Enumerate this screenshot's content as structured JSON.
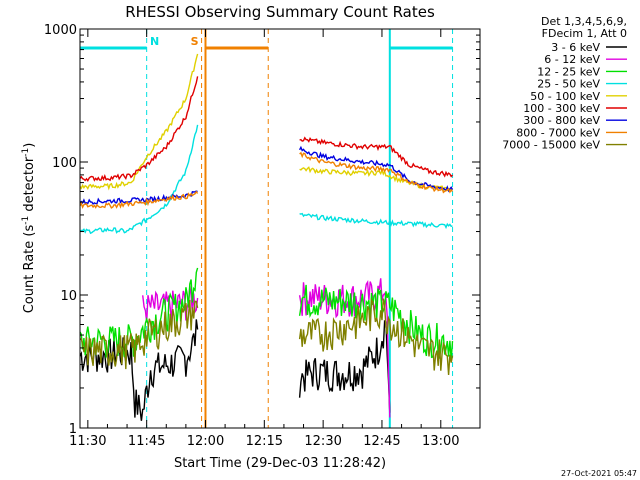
{
  "chart_data": {
    "type": "line",
    "title": "RHESSI Observing Summary Count Rates",
    "xlabel": "Start Time (29-Dec-03 11:28:42)",
    "ylabel_main": "Count Rate (s",
    "ylabel_sup1": "-1",
    "ylabel_mid": " detector",
    "ylabel_sup2": "-1",
    "ylabel_end": ")",
    "y_scale": "log",
    "ylim": [
      1,
      1000
    ],
    "xlim": [
      "11:28",
      "13:10"
    ],
    "x_tick_labels": [
      "11:30",
      "11:45",
      "12:00",
      "12:15",
      "12:30",
      "12:45",
      "13:00"
    ],
    "y_tick_labels": [
      "1",
      "10",
      "100",
      "1000"
    ],
    "legend_header": [
      "Det 1,3,4,5,6,9,",
      "FDecim 1, Att 0"
    ],
    "legend_position": "right",
    "series": [
      {
        "name": "3 - 6 keV",
        "color": "#000000",
        "points": [
          [
            "11:28",
            3.5
          ],
          [
            "11:36",
            3.6
          ],
          [
            "11:41",
            3.8
          ],
          [
            "11:42",
            1.6
          ],
          [
            "11:44",
            1.3
          ],
          [
            "11:46",
            2.8
          ],
          [
            "11:50",
            3.0
          ],
          [
            "11:55",
            3.4
          ],
          [
            "11:57",
            4.5
          ],
          [
            "11:58",
            5.5
          ],
          [
            "12:24",
            2.4
          ],
          [
            "12:28",
            2.7
          ],
          [
            "12:35",
            2.6
          ],
          [
            "12:40",
            2.8
          ],
          [
            "12:44",
            4.0
          ],
          [
            "12:46",
            6.5
          ],
          [
            "12:47",
            1.3
          ]
        ]
      },
      {
        "name": "6 - 12 keV",
        "color": "#e000e0",
        "points": [
          [
            "11:44",
            8.0
          ],
          [
            "11:50",
            8.2
          ],
          [
            "11:55",
            8.8
          ],
          [
            "11:58",
            9.5
          ],
          [
            "12:24",
            9.8
          ],
          [
            "12:30",
            9.6
          ],
          [
            "12:40",
            9.6
          ],
          [
            "12:45",
            10.5
          ],
          [
            "12:46",
            12.0
          ],
          [
            "12:47",
            1.2
          ]
        ]
      },
      {
        "name": "12 - 25 keV",
        "color": "#00e000",
        "points": [
          [
            "11:28",
            4.5
          ],
          [
            "11:35",
            4.6
          ],
          [
            "11:42",
            4.7
          ],
          [
            "11:45",
            6.0
          ],
          [
            "11:50",
            7.5
          ],
          [
            "11:55",
            9.0
          ],
          [
            "11:58",
            16.0
          ],
          [
            "12:24",
            9.5
          ],
          [
            "12:30",
            9.2
          ],
          [
            "12:40",
            9.0
          ],
          [
            "12:47",
            8.5
          ],
          [
            "12:50",
            7.0
          ],
          [
            "12:55",
            5.0
          ],
          [
            "13:03",
            4.5
          ]
        ]
      },
      {
        "name": "25 - 50 keV",
        "color": "#00e0e0",
        "points": [
          [
            "11:28",
            30
          ],
          [
            "11:36",
            31
          ],
          [
            "11:40",
            30
          ],
          [
            "11:45",
            37
          ],
          [
            "11:50",
            48
          ],
          [
            "11:55",
            85
          ],
          [
            "11:58",
            190
          ],
          [
            "12:24",
            40
          ],
          [
            "12:30",
            38
          ],
          [
            "12:40",
            36
          ],
          [
            "12:47",
            35
          ],
          [
            "12:55",
            34
          ],
          [
            "13:03",
            33
          ]
        ]
      },
      {
        "name": "50 - 100 keV",
        "color": "#e0d000",
        "points": [
          [
            "11:28",
            65
          ],
          [
            "11:36",
            66
          ],
          [
            "11:41",
            70
          ],
          [
            "11:45",
            110
          ],
          [
            "11:50",
            170
          ],
          [
            "11:55",
            300
          ],
          [
            "11:58",
            650
          ],
          [
            "12:24",
            90
          ],
          [
            "12:30",
            85
          ],
          [
            "12:40",
            82
          ],
          [
            "12:45",
            84
          ],
          [
            "12:50",
            72
          ],
          [
            "12:55",
            66
          ],
          [
            "13:03",
            62
          ]
        ]
      },
      {
        "name": "100 - 300 keV",
        "color": "#e00000",
        "points": [
          [
            "11:28",
            75
          ],
          [
            "11:36",
            76
          ],
          [
            "11:41",
            79
          ],
          [
            "11:45",
            95
          ],
          [
            "11:50",
            130
          ],
          [
            "11:55",
            220
          ],
          [
            "11:58",
            440
          ],
          [
            "12:24",
            150
          ],
          [
            "12:30",
            140
          ],
          [
            "12:40",
            130
          ],
          [
            "12:47",
            130
          ],
          [
            "12:52",
            95
          ],
          [
            "12:57",
            85
          ],
          [
            "13:03",
            80
          ]
        ]
      },
      {
        "name": "300 - 800 keV",
        "color": "#0000e0",
        "points": [
          [
            "11:28",
            50
          ],
          [
            "11:36",
            51
          ],
          [
            "11:45",
            52
          ],
          [
            "11:50",
            54
          ],
          [
            "11:55",
            56
          ],
          [
            "11:58",
            60
          ],
          [
            "12:24",
            125
          ],
          [
            "12:30",
            110
          ],
          [
            "12:40",
            100
          ],
          [
            "12:47",
            95
          ],
          [
            "12:52",
            72
          ],
          [
            "12:57",
            66
          ],
          [
            "13:03",
            62
          ]
        ]
      },
      {
        "name": "800 - 7000 keV",
        "color": "#f08000",
        "points": [
          [
            "11:28",
            47
          ],
          [
            "11:36",
            47
          ],
          [
            "11:45",
            50
          ],
          [
            "11:50",
            53
          ],
          [
            "11:55",
            55
          ],
          [
            "11:58",
            58
          ],
          [
            "12:24",
            115
          ],
          [
            "12:30",
            100
          ],
          [
            "12:40",
            90
          ],
          [
            "12:47",
            88
          ],
          [
            "12:52",
            70
          ],
          [
            "12:57",
            64
          ],
          [
            "13:03",
            60
          ]
        ]
      },
      {
        "name": "7000 - 15000 keV",
        "color": "#808000",
        "points": [
          [
            "11:28",
            3.8
          ],
          [
            "11:36",
            3.9
          ],
          [
            "11:42",
            4.0
          ],
          [
            "11:45",
            5.0
          ],
          [
            "11:50",
            6.0
          ],
          [
            "11:55",
            7.0
          ],
          [
            "11:58",
            8.0
          ],
          [
            "12:24",
            5.0
          ],
          [
            "12:30",
            5.2
          ],
          [
            "12:40",
            6.5
          ],
          [
            "12:45",
            8.0
          ],
          [
            "12:48",
            6.0
          ],
          [
            "12:55",
            4.0
          ],
          [
            "13:03",
            3.5
          ]
        ]
      }
    ],
    "annotations": [
      {
        "label": "N",
        "color": "#00e0e0",
        "type": "night",
        "solid_segments": [
          [
            "11:28",
            "11:45"
          ],
          [
            "12:47",
            "13:03"
          ]
        ],
        "dashed_lines": [
          "11:45",
          "13:03"
        ],
        "solid_lines": [
          "12:47"
        ]
      },
      {
        "label": "S",
        "color": "#f08000",
        "type": "saa",
        "solid_segments": [
          [
            "12:00",
            "12:16"
          ]
        ],
        "dashed_lines": [
          "11:59",
          "12:16"
        ],
        "solid_lines": [
          "12:00"
        ]
      }
    ],
    "footer_stamp": "27-Oct-2021 05:47"
  }
}
